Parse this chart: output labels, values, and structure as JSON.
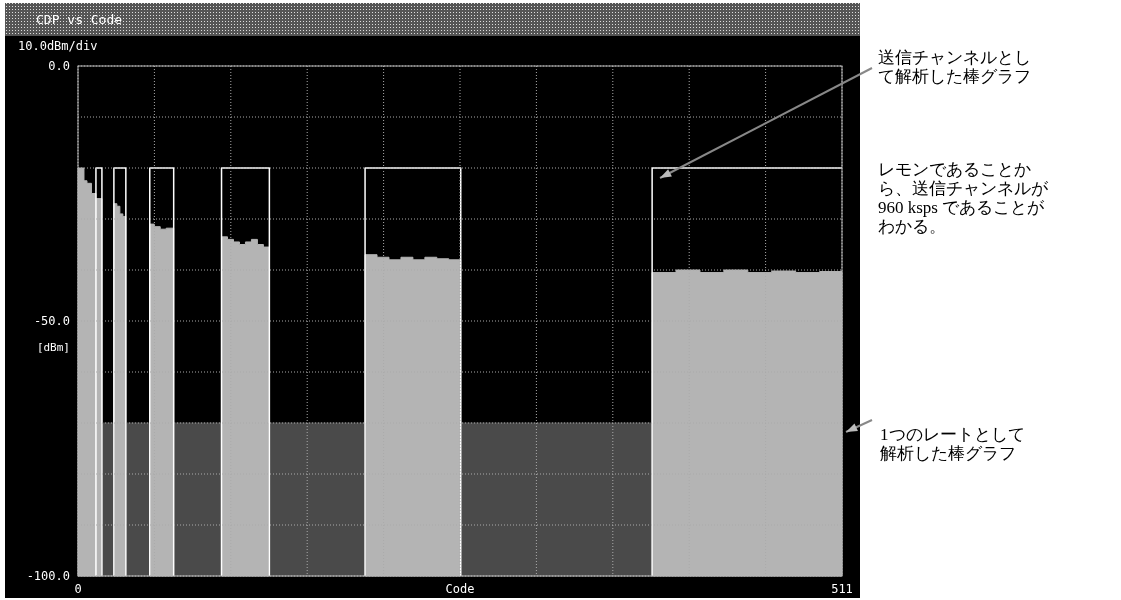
{
  "chart_data": {
    "type": "area",
    "title": "CDP vs Code",
    "xlabel": "Code",
    "ylabel": "[dBm]",
    "xlim": [
      0,
      511
    ],
    "ylim": [
      -100,
      0
    ],
    "xticks": [
      0,
      {
        "value": 51.1,
        "label": null
      },
      {
        "value": 102.2,
        "label": null
      },
      {
        "value": 153.3,
        "label": null
      },
      {
        "value": 204.4,
        "label": null
      },
      {
        "value": 255.5,
        "label": null
      },
      {
        "value": 306.6,
        "label": null
      },
      {
        "value": 357.7,
        "label": null
      },
      {
        "value": 408.8,
        "label": null
      },
      {
        "value": 459.9,
        "label": null
      },
      511
    ],
    "yticks": [
      {
        "value": 0,
        "label": "0.0"
      },
      {
        "value": -10,
        "label": null
      },
      {
        "value": -20,
        "label": null
      },
      {
        "value": -30,
        "label": null
      },
      {
        "value": -40,
        "label": null
      },
      {
        "value": -50,
        "label": "-50.0"
      },
      {
        "value": -60,
        "label": null
      },
      {
        "value": -70,
        "label": null
      },
      {
        "value": -80,
        "label": null
      },
      {
        "value": -90,
        "label": null
      },
      {
        "value": -100,
        "label": "-100.0"
      }
    ],
    "grid": true,
    "series": [
      {
        "color": "#b4b4b4",
        "x": [
          0,
          0,
          4,
          4,
          6,
          6,
          9,
          9,
          12,
          12,
          16,
          16,
          null,
          24,
          24,
          26,
          26,
          28,
          28,
          30,
          30,
          32,
          32,
          null,
          48,
          48,
          51,
          51,
          55,
          55,
          59,
          59,
          64,
          64,
          null,
          96,
          96,
          100,
          100,
          104,
          104,
          108,
          108,
          112,
          112,
          116,
          116,
          120,
          120,
          124,
          124,
          128,
          128,
          null,
          192,
          192,
          200,
          200,
          208,
          208,
          216,
          216,
          224,
          224,
          232,
          232,
          240,
          240,
          248,
          248,
          256,
          256,
          null,
          384,
          384,
          400,
          400,
          416,
          416,
          432,
          432,
          448,
          448,
          464,
          464,
          480,
          480,
          496,
          496,
          511,
          511
        ],
        "values": [
          -100,
          -20,
          -20,
          -22.5,
          -22.5,
          -23,
          -23,
          -25,
          -25,
          -26,
          -26,
          -100,
          null,
          -100,
          -27,
          -27,
          -27.5,
          -27.5,
          -29,
          -29,
          -29.5,
          -29.5,
          -100,
          null,
          -100,
          -31,
          -31,
          -31.5,
          -31.5,
          -32,
          -32,
          -31.8,
          -31.8,
          -100,
          null,
          -100,
          -33.5,
          -33.5,
          -34,
          -34,
          -34.5,
          -34.5,
          -35,
          -35,
          -34.5,
          -34.5,
          -34,
          -34,
          -35,
          -35,
          -35.5,
          -35.5,
          -100,
          null,
          -100,
          -37,
          -37,
          -37.5,
          -37.5,
          -38,
          -38,
          -37.5,
          -37.5,
          -38,
          -38,
          -37.5,
          -37.5,
          -37.8,
          -37.8,
          -38,
          -38,
          -100,
          null,
          -100,
          -40.5,
          -40.5,
          -40,
          -40,
          -40.5,
          -40.5,
          -40,
          -40,
          -40.5,
          -40.5,
          -40.2,
          -40.2,
          -40.5,
          -40.5,
          -40.3,
          -40.3,
          -100
        ]
      },
      {
        "color": "#4a4a4a",
        "x": [
          16,
          16,
          24,
          24,
          null,
          32,
          32,
          48,
          48,
          null,
          64,
          64,
          96,
          96,
          null,
          128,
          128,
          192,
          192,
          null,
          256,
          256,
          384,
          384
        ],
        "values": [
          -100,
          -70,
          -70,
          -100,
          null,
          -100,
          -70,
          -70,
          -100,
          null,
          -100,
          -70,
          -70,
          -100,
          null,
          -100,
          -70,
          -70,
          -100,
          null,
          -100,
          -70,
          -70,
          -100
        ]
      },
      {
        "type": "line",
        "color": "#ffffff",
        "x": [
          12,
          12,
          16,
          16,
          null,
          24,
          24,
          32,
          32,
          null,
          48,
          48,
          64,
          64,
          null,
          96,
          96,
          128,
          128,
          null,
          192,
          192,
          256,
          256,
          null,
          384,
          384,
          511
        ],
        "values": [
          -100,
          -20,
          -20,
          -100,
          null,
          -100,
          -20,
          -20,
          -100,
          null,
          -100,
          -20,
          -20,
          -100,
          null,
          -100,
          -20,
          -20,
          -100,
          null,
          -100,
          -20,
          -20,
          -100,
          null,
          -100,
          -20,
          -20
        ]
      }
    ],
    "annotations": [
      "10.0dBm/div",
      "送信チャンネルとして解析した棒グラフ",
      "レモンであることから、送信チャンネルが960 ksps であることがわかる。",
      "1つのレートとして解析した棒グラフ"
    ]
  }
}
